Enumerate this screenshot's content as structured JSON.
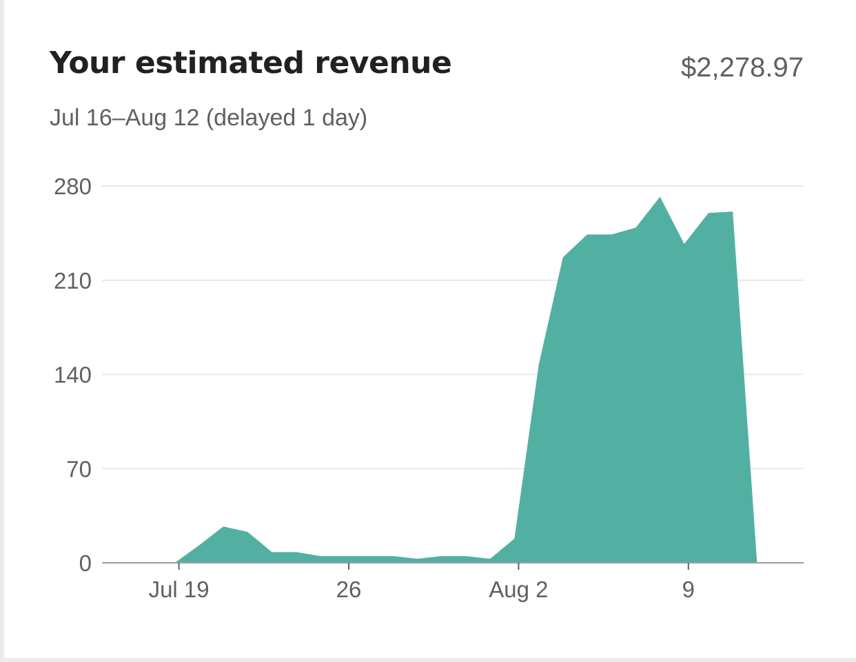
{
  "card": {
    "title": "Your estimated revenue",
    "total": "$2,278.97",
    "subtitle": "Jul 16–Aug 12 (delayed 1 day)"
  },
  "colors": {
    "area": "#52b0a2",
    "grid": "#e8e8e8",
    "axis": "#9e9e9e",
    "text_primary": "#212121",
    "text_secondary": "#606060"
  },
  "chart_data": {
    "type": "area",
    "x": [
      "Jul 16",
      "Jul 17",
      "Jul 18",
      "Jul 19",
      "Jul 20",
      "Jul 21",
      "Jul 22",
      "Jul 23",
      "Jul 24",
      "Jul 25",
      "Jul 26",
      "Jul 27",
      "Jul 28",
      "Jul 29",
      "Jul 30",
      "Jul 31",
      "Aug 1",
      "Aug 2",
      "Aug 3",
      "Aug 4",
      "Aug 5",
      "Aug 6",
      "Aug 7",
      "Aug 8",
      "Aug 9",
      "Aug 10",
      "Aug 11",
      "Aug 12"
    ],
    "series": [
      {
        "values": [
          0,
          0,
          0,
          0,
          13,
          27,
          23,
          8,
          8,
          5,
          5,
          5,
          5,
          3,
          5,
          5,
          3,
          18,
          147,
          227,
          244,
          244,
          249,
          272,
          237,
          260,
          261,
          0
        ]
      }
    ],
    "ylim": [
      0,
      280
    ],
    "yticks": [
      0,
      70,
      140,
      210,
      280
    ],
    "xtick_labels": [
      {
        "label": "Jul 19",
        "x": "Jul 19"
      },
      {
        "label": "26",
        "x": "Jul 26"
      },
      {
        "label": "Aug 2",
        "x": "Aug 2"
      },
      {
        "label": "9",
        "x": "Aug 9"
      }
    ],
    "xlabel": "",
    "ylabel": "",
    "grid": true
  }
}
